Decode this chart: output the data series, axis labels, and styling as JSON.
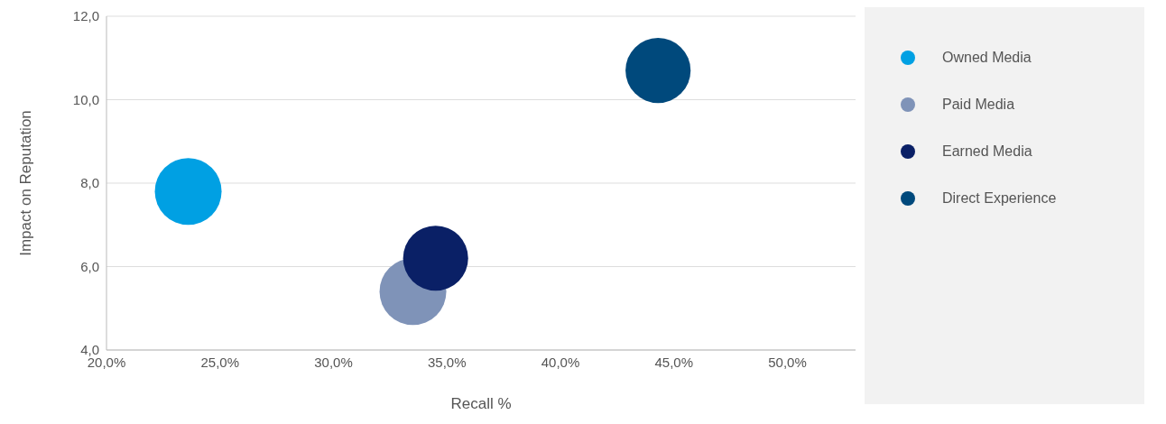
{
  "chart_data": {
    "type": "bubble",
    "xlabel": "Recall %",
    "ylabel": "Impact on Reputation",
    "xlim": [
      20,
      53
    ],
    "xticks": [
      {
        "value": 20,
        "label": "20,0%"
      },
      {
        "value": 25,
        "label": "25,0%"
      },
      {
        "value": 30,
        "label": "30,0%"
      },
      {
        "value": 35,
        "label": "35,0%"
      },
      {
        "value": 40,
        "label": "40,0%"
      },
      {
        "value": 45,
        "label": "45,0%"
      },
      {
        "value": 50,
        "label": "50,0%"
      }
    ],
    "ylim": [
      4,
      12
    ],
    "yticks": [
      {
        "value": 4,
        "label": "4,0"
      },
      {
        "value": 6,
        "label": "6,0"
      },
      {
        "value": 8,
        "label": "8,0"
      },
      {
        "value": 10,
        "label": "10,0"
      },
      {
        "value": 12,
        "label": "12,0"
      }
    ],
    "grid": "y",
    "legend": "right",
    "series": [
      {
        "name": "Owned Media",
        "color": "#00a0e3",
        "x": [
          23.6
        ],
        "values": [
          7.8
        ],
        "sizes": [
          1
        ]
      },
      {
        "name": "Paid Media",
        "color": "#7f93b8",
        "x": [
          33.5
        ],
        "values": [
          5.4
        ],
        "sizes": [
          1
        ]
      },
      {
        "name": "Earned Media",
        "color": "#0a2066",
        "x": [
          34.5
        ],
        "values": [
          6.2
        ],
        "sizes": [
          0.95
        ]
      },
      {
        "name": "Direct Experience",
        "color": "#00497c",
        "x": [
          44.3
        ],
        "values": [
          10.7
        ],
        "sizes": [
          0.95
        ]
      }
    ]
  }
}
